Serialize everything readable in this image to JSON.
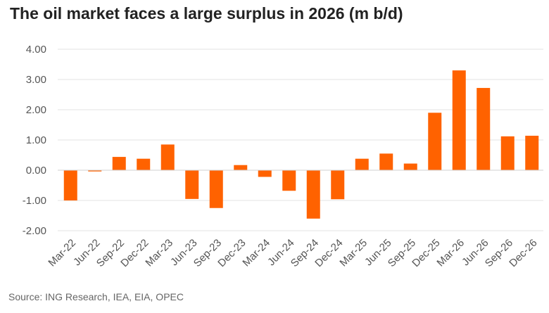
{
  "chart_data": {
    "type": "bar",
    "title": "The oil market faces a large surplus in 2026 (m b/d)",
    "xlabel": "",
    "ylabel": "",
    "ylim": [
      -2.0,
      4.0
    ],
    "yticks": [
      4.0,
      3.0,
      2.0,
      1.0,
      0.0,
      -1.0,
      -2.0
    ],
    "ytick_labels": [
      "4.00",
      "3.00",
      "2.00",
      "1.00",
      "0.00",
      "-1.00",
      "-2.00"
    ],
    "grid": true,
    "legend": "none",
    "bar_color": "#FF6200",
    "categories": [
      "Mar-22",
      "Jun-22",
      "Sep-22",
      "Dec-22",
      "Mar-23",
      "Jun-23",
      "Sep-23",
      "Dec-23",
      "Mar-24",
      "Jun-24",
      "Sep-24",
      "Dec-24",
      "Mar-25",
      "Jun-25",
      "Sep-25",
      "Dec-25",
      "Mar-26",
      "Jun-26",
      "Sep-26",
      "Dec-26"
    ],
    "values": [
      -1.0,
      -0.04,
      0.44,
      0.38,
      0.85,
      -0.95,
      -1.25,
      0.17,
      -0.22,
      -0.68,
      -1.6,
      -0.96,
      0.38,
      0.55,
      0.22,
      1.9,
      3.3,
      2.72,
      1.12,
      1.14
    ],
    "source": "Source: ING Research, IEA, EIA, OPEC"
  }
}
